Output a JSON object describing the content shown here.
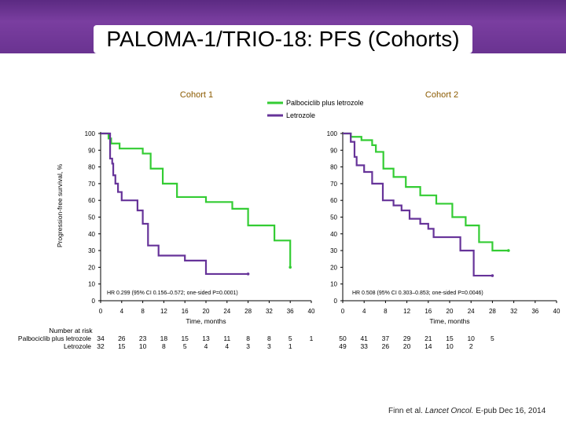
{
  "slide": {
    "title": "PALOMA-1/TRIO-18: PFS (Cohorts)",
    "citation_pre": "Finn et al. ",
    "citation_journal": "Lancet Oncol.",
    "citation_post": " E-pub Dec 16, 2014"
  },
  "colors": {
    "banner": "#6a3391",
    "palbo": "#33cc33",
    "letro": "#663399"
  },
  "chart_data": [
    {
      "type": "line",
      "title": "Cohort 1",
      "xlabel": "Time, months",
      "ylabel": "Progression-free survival, %",
      "xlim": [
        0,
        40
      ],
      "ylim": [
        0,
        100
      ],
      "xticks": [
        "0",
        "4",
        "8",
        "12",
        "16",
        "20",
        "24",
        "28",
        "32",
        "36",
        "40"
      ],
      "yticks": [
        "0",
        "10",
        "20",
        "30",
        "40",
        "50",
        "60",
        "70",
        "80",
        "90",
        "100"
      ],
      "hr_text": "HR 0.299 (95% CI 0.156–0.572; one-sided P=0.0001)",
      "series": [
        {
          "name": "Palbociclib plus letrozole",
          "color": "#33cc33",
          "steps": [
            [
              0,
              100
            ],
            [
              1.5,
              97
            ],
            [
              2,
              94
            ],
            [
              3.6,
              91
            ],
            [
              8,
              88
            ],
            [
              9.5,
              79
            ],
            [
              11.8,
              70
            ],
            [
              14.5,
              62
            ],
            [
              20,
              59
            ],
            [
              25,
              55
            ],
            [
              28,
              45
            ],
            [
              33,
              36
            ],
            [
              36,
              20
            ]
          ]
        },
        {
          "name": "Letrozole",
          "color": "#663399",
          "steps": [
            [
              0,
              100
            ],
            [
              1.8,
              85
            ],
            [
              2.2,
              82
            ],
            [
              2.4,
              75
            ],
            [
              2.8,
              70
            ],
            [
              3.3,
              65
            ],
            [
              4,
              60
            ],
            [
              7,
              54
            ],
            [
              8,
              46
            ],
            [
              9,
              33
            ],
            [
              11,
              27
            ],
            [
              16,
              24
            ],
            [
              20,
              16
            ],
            [
              28,
              16
            ]
          ]
        }
      ],
      "risk_table": {
        "label": "Number at risk",
        "rows": [
          {
            "name": "Palbociclib plus letrozole",
            "values": [
              "34",
              "26",
              "23",
              "18",
              "15",
              "13",
              "11",
              "8",
              "8",
              "5",
              "1"
            ]
          },
          {
            "name": "Letrozole",
            "values": [
              "32",
              "15",
              "10",
              "8",
              "5",
              "4",
              "4",
              "3",
              "3",
              "1",
              ""
            ]
          }
        ]
      }
    },
    {
      "type": "line",
      "title": "Cohort 2",
      "xlabel": "Time, months",
      "xlim": [
        0,
        40
      ],
      "ylim": [
        0,
        100
      ],
      "xticks": [
        "0",
        "4",
        "8",
        "12",
        "16",
        "20",
        "24",
        "28",
        "32",
        "36",
        "40"
      ],
      "yticks": [
        "0",
        "10",
        "20",
        "30",
        "40",
        "50",
        "60",
        "70",
        "80",
        "90",
        "100"
      ],
      "hr_text": "HR 0.508 (95% CI 0.303–0.853; one-sided P=0.0046)",
      "series": [
        {
          "name": "Palbociclib plus letrozole",
          "color": "#33cc33",
          "steps": [
            [
              0,
              100
            ],
            [
              1.5,
              98
            ],
            [
              3.5,
              96
            ],
            [
              5.5,
              93
            ],
            [
              6.2,
              89
            ],
            [
              7.6,
              79
            ],
            [
              9.5,
              74
            ],
            [
              11.8,
              68
            ],
            [
              14.5,
              63
            ],
            [
              17.5,
              58
            ],
            [
              20.5,
              50
            ],
            [
              23,
              45
            ],
            [
              25.5,
              35
            ],
            [
              28,
              30
            ],
            [
              31,
              30
            ]
          ]
        },
        {
          "name": "Letrozole",
          "color": "#663399",
          "steps": [
            [
              0,
              100
            ],
            [
              1.5,
              95
            ],
            [
              2.2,
              86
            ],
            [
              2.6,
              81
            ],
            [
              4,
              77
            ],
            [
              5.5,
              70
            ],
            [
              7.5,
              60
            ],
            [
              9.5,
              57
            ],
            [
              11,
              54
            ],
            [
              12.5,
              49
            ],
            [
              14.5,
              46
            ],
            [
              16,
              43
            ],
            [
              17,
              38
            ],
            [
              22,
              30
            ],
            [
              24.5,
              15
            ],
            [
              28,
              15
            ]
          ]
        }
      ],
      "risk_table": {
        "rows": [
          {
            "name": "Palbociclib plus letrozole",
            "values": [
              "50",
              "41",
              "37",
              "29",
              "21",
              "15",
              "10",
              "5",
              "",
              "",
              ""
            ]
          },
          {
            "name": "Letrozole",
            "values": [
              "49",
              "33",
              "26",
              "20",
              "14",
              "10",
              "2",
              "",
              "",
              "",
              ""
            ]
          }
        ]
      }
    }
  ]
}
